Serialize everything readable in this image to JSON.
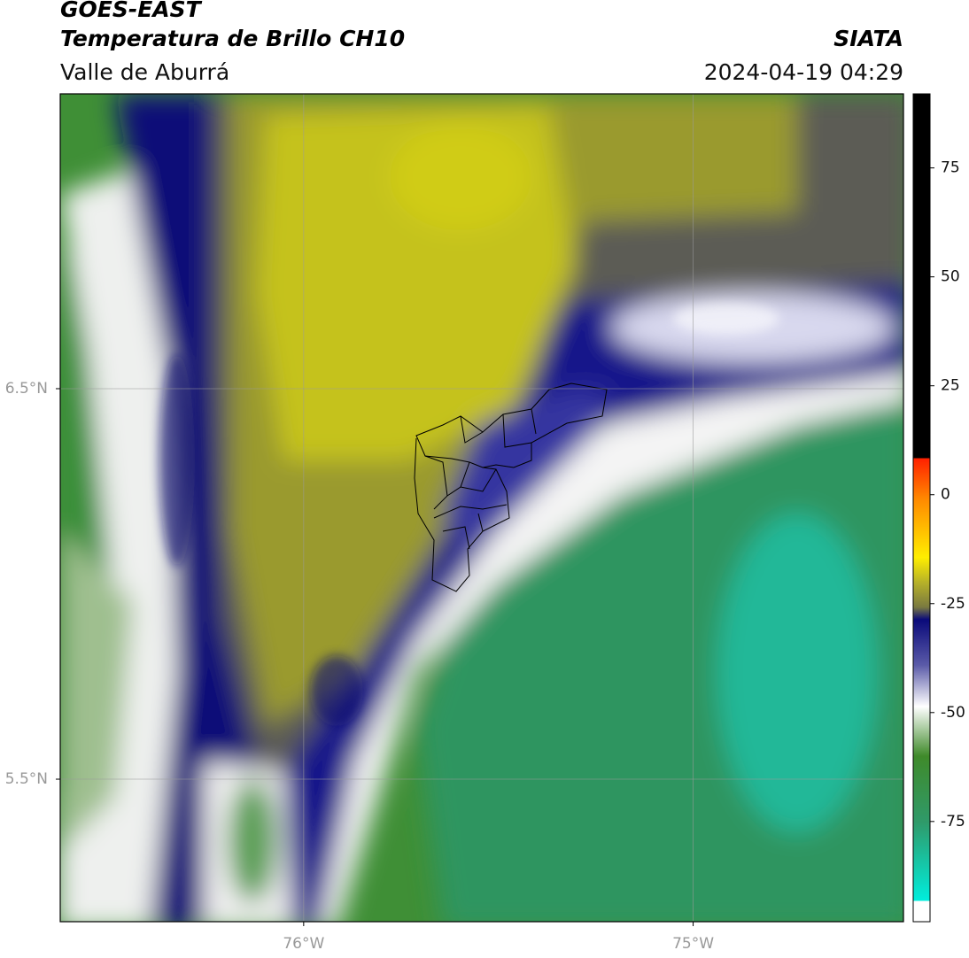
{
  "header": {
    "title": "GOES-EAST",
    "subtitle": "Temperatura de Brillo CH10",
    "region": "Valle de Aburrá",
    "agency": "SIATA",
    "datetime": "2024-04-19 04:29"
  },
  "map": {
    "xlim": [
      -76.625,
      -74.46
    ],
    "ylim": [
      5.135,
      7.255
    ],
    "xticks": [
      {
        "value": -76,
        "label": "76°W"
      },
      {
        "value": -75,
        "label": "75°W"
      }
    ],
    "yticks": [
      {
        "value": 6.5,
        "label": "6.5°N"
      },
      {
        "value": 5.5,
        "label": "5.5°N"
      }
    ]
  },
  "colorbar": {
    "lim": [
      -98,
      92
    ],
    "ticks": [
      75,
      50,
      25,
      0,
      -25,
      -50,
      -75
    ]
  }
}
